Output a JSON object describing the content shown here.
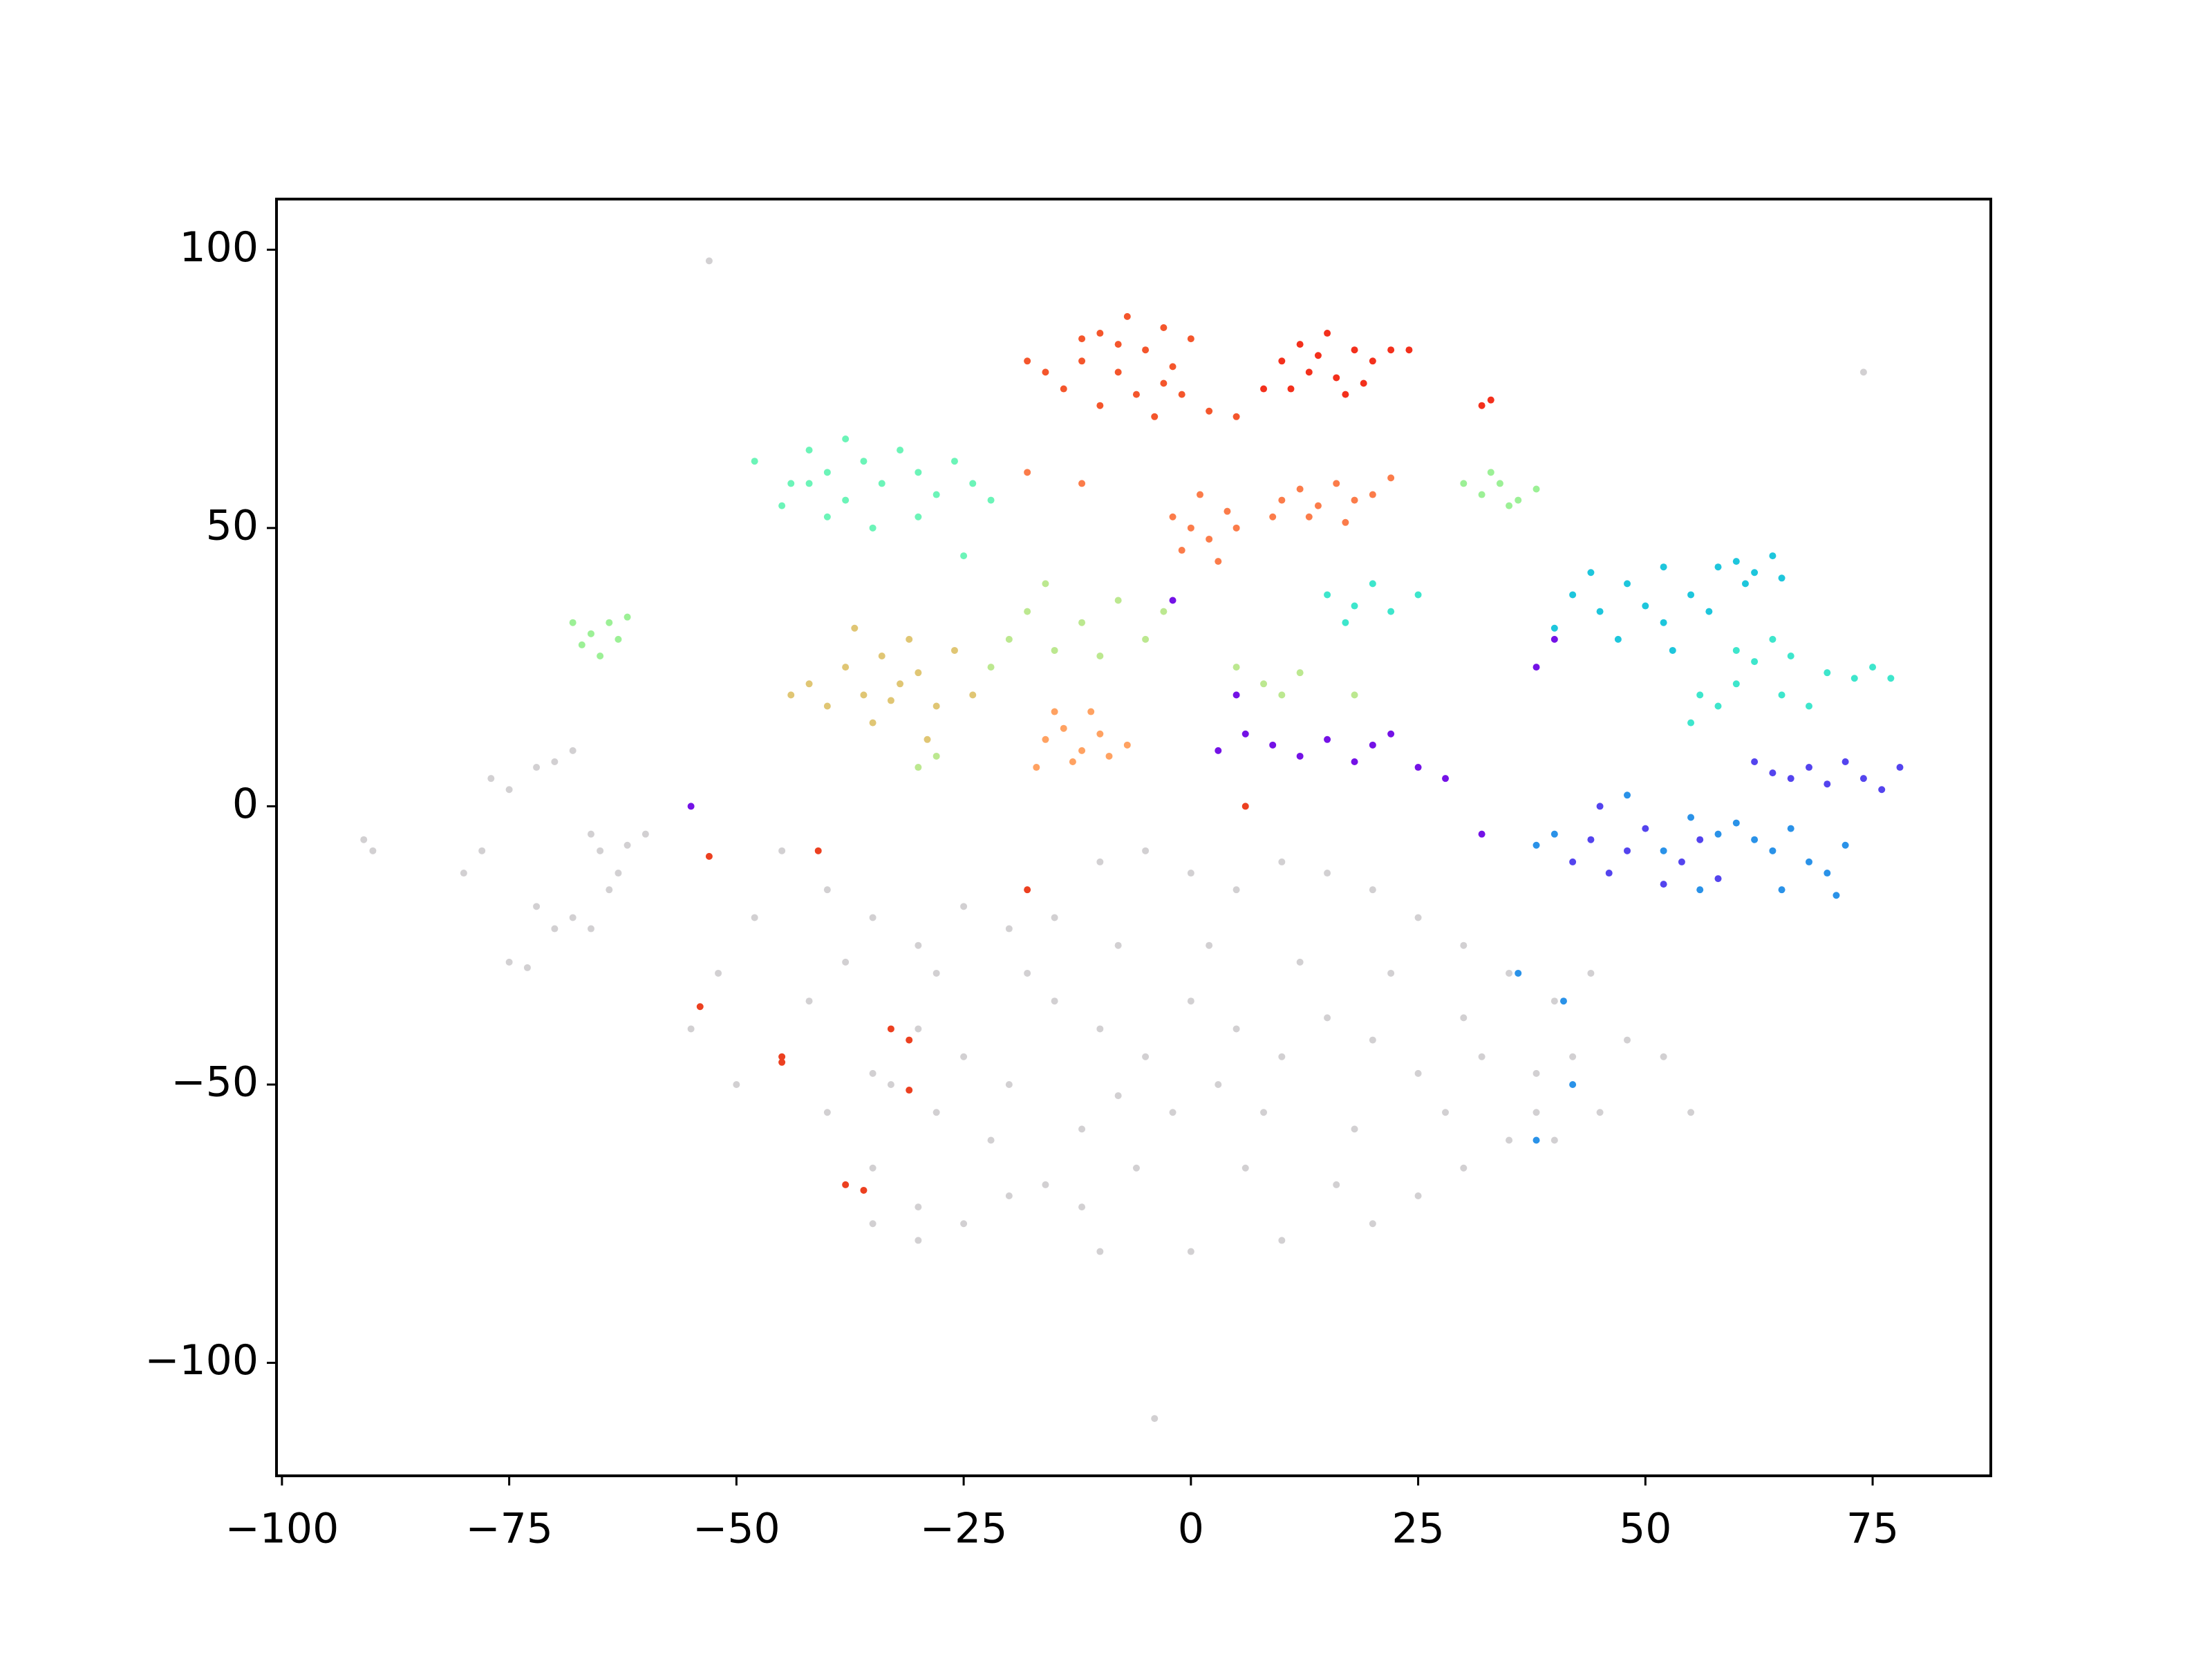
{
  "chart_data": {
    "type": "scatter",
    "xlim": [
      -100.6,
      88.0
    ],
    "ylim": [
      -120.3,
      109.1
    ],
    "xticks": [
      {
        "value": -100,
        "label": "−100"
      },
      {
        "value": -75,
        "label": "−75"
      },
      {
        "value": -50,
        "label": "−50"
      },
      {
        "value": -25,
        "label": "−25"
      },
      0,
      25,
      50,
      75
    ],
    "yticks": [
      {
        "value": -100,
        "label": "−100"
      },
      {
        "value": -50,
        "label": "−50"
      },
      0,
      50,
      100
    ],
    "grid": false,
    "series": [
      {
        "color": "#d2d0d2",
        "x": [
          -53,
          74,
          -4,
          -90,
          -91,
          -65,
          -63,
          -66,
          -62,
          -64,
          -68,
          -70,
          -66,
          -72,
          -75,
          -73,
          -77,
          -75,
          -70,
          -68,
          -72,
          -80,
          -78,
          -60,
          -40,
          -35,
          -30,
          -25,
          -20,
          -15,
          -10,
          -5,
          0,
          5,
          10,
          15,
          20,
          25,
          30,
          35,
          40,
          42,
          38,
          35,
          30,
          25,
          20,
          10,
          0,
          -10,
          -20,
          -30,
          -35,
          -40,
          -45,
          -42,
          -38,
          -30,
          -25,
          -20,
          -15,
          -10,
          -5,
          0,
          5,
          10,
          15,
          20,
          25,
          30,
          -28,
          -22,
          -12,
          -2,
          8,
          18,
          28,
          -8,
          2,
          12,
          22,
          -18,
          -28,
          -33,
          -6,
          6,
          16,
          -16,
          -35,
          32,
          38,
          45,
          48,
          52,
          55,
          -48,
          -52,
          -55,
          -45,
          -50,
          -35,
          -30,
          -25,
          -12,
          40,
          44,
          -8,
          3
        ],
        "values": [
          98,
          78,
          -110,
          -8,
          -6,
          -8,
          -12,
          -5,
          -7,
          -15,
          -20,
          -22,
          -22,
          -18,
          -28,
          -29,
          5,
          3,
          8,
          10,
          7,
          -12,
          -8,
          -5,
          -15,
          -20,
          -25,
          -18,
          -22,
          -20,
          -10,
          -8,
          -12,
          -15,
          -10,
          -12,
          -15,
          -20,
          -25,
          -30,
          -35,
          -45,
          -55,
          -60,
          -65,
          -70,
          -75,
          -78,
          -80,
          -80,
          -70,
          -72,
          -65,
          -55,
          -45,
          -35,
          -28,
          -40,
          -45,
          -50,
          -35,
          -40,
          -45,
          -35,
          -40,
          -45,
          -38,
          -42,
          -48,
          -38,
          -55,
          -60,
          -58,
          -55,
          -55,
          -58,
          -55,
          -25,
          -25,
          -28,
          -30,
          -30,
          -30,
          -50,
          -65,
          -65,
          -68,
          -68,
          -48,
          -45,
          -48,
          -55,
          -42,
          -45,
          -55,
          -20,
          -30,
          -40,
          -8,
          -50,
          -75,
          -78,
          -75,
          -72,
          -60,
          -30,
          -52,
          -50
        ]
      },
      {
        "color": "#f4562c",
        "x": [
          -10,
          -7,
          -3,
          -12,
          -8,
          -5,
          -2,
          -14,
          -10,
          -6,
          -1,
          2,
          -16,
          -4,
          0,
          -8,
          -18,
          -12,
          5,
          -3
        ],
        "values": [
          85,
          88,
          86,
          80,
          78,
          82,
          79,
          75,
          72,
          74,
          74,
          71,
          78,
          70,
          84,
          83,
          80,
          84,
          70,
          76
        ]
      },
      {
        "color": "#f3301c",
        "x": [
          12,
          15,
          18,
          20,
          13,
          16,
          10,
          19,
          22,
          14,
          17,
          11,
          24,
          8,
          32,
          33
        ],
        "values": [
          83,
          85,
          82,
          80,
          78,
          77,
          80,
          76,
          82,
          81,
          74,
          75,
          82,
          75,
          72,
          73
        ]
      },
      {
        "color": "#6cf4b8",
        "x": [
          -48,
          -44,
          -42,
          -40,
          -38,
          -36,
          -34,
          -32,
          -30,
          -28,
          -26,
          -24,
          -40,
          -35,
          -45,
          -22,
          -30,
          -38,
          -25,
          -42
        ],
        "values": [
          62,
          58,
          64,
          60,
          55,
          62,
          58,
          64,
          60,
          56,
          62,
          58,
          52,
          50,
          54,
          55,
          52,
          66,
          45,
          58
        ]
      },
      {
        "color": "#fb7c4a",
        "x": [
          -2,
          0,
          2,
          4,
          -1,
          3,
          1,
          5,
          10,
          12,
          14,
          16,
          18,
          20,
          13,
          17,
          22,
          9,
          -18,
          -12
        ],
        "values": [
          52,
          50,
          48,
          53,
          46,
          44,
          56,
          50,
          55,
          57,
          54,
          58,
          55,
          56,
          52,
          51,
          59,
          52,
          60,
          58
        ]
      },
      {
        "color": "#9cf096",
        "x": [
          30,
          32,
          34,
          36,
          33,
          35,
          38,
          -66,
          -64,
          -67,
          -63,
          -65,
          -62,
          -68
        ],
        "values": [
          58,
          56,
          58,
          55,
          60,
          54,
          57,
          31,
          33,
          29,
          30,
          27,
          34,
          33
        ]
      },
      {
        "color": "#1ec6dc",
        "x": [
          42,
          45,
          48,
          50,
          52,
          55,
          47,
          44,
          52,
          57,
          53,
          40,
          60,
          62,
          64,
          61,
          58,
          65
        ],
        "values": [
          38,
          35,
          40,
          36,
          33,
          38,
          30,
          42,
          43,
          35,
          28,
          32,
          44,
          42,
          45,
          40,
          43,
          41
        ]
      },
      {
        "color": "#3ee6cc",
        "x": [
          15,
          18,
          20,
          22,
          25,
          17,
          60,
          62,
          64,
          66,
          56,
          58,
          60,
          65,
          70,
          73,
          75,
          77,
          68,
          55
        ],
        "values": [
          38,
          36,
          40,
          35,
          38,
          33,
          28,
          26,
          30,
          27,
          20,
          18,
          22,
          20,
          24,
          23,
          25,
          23,
          18,
          15
        ]
      },
      {
        "color": "#e0c674",
        "x": [
          -42,
          -40,
          -38,
          -36,
          -34,
          -32,
          -30,
          -28,
          -35,
          -31,
          -26,
          -44,
          -37,
          -29,
          -33,
          -24
        ],
        "values": [
          22,
          18,
          25,
          20,
          27,
          22,
          24,
          18,
          15,
          30,
          28,
          20,
          32,
          12,
          19,
          20
        ]
      },
      {
        "color": "#bce890",
        "x": [
          -20,
          -18,
          -15,
          -12,
          -10,
          -8,
          -5,
          -16,
          -22,
          -3,
          5,
          8,
          10,
          12,
          18,
          -30,
          -28
        ],
        "values": [
          30,
          35,
          28,
          33,
          27,
          37,
          30,
          40,
          25,
          35,
          25,
          22,
          20,
          24,
          20,
          7,
          9
        ]
      },
      {
        "color": "#ffa262",
        "x": [
          -16,
          -14,
          -12,
          -10,
          -13,
          -9,
          -15,
          -11,
          -7,
          -17
        ],
        "values": [
          12,
          14,
          10,
          13,
          8,
          9,
          17,
          17,
          11,
          7
        ]
      },
      {
        "color": "#7412e6",
        "x": [
          3,
          6,
          9,
          12,
          15,
          18,
          20,
          22,
          25,
          28,
          5,
          -2,
          32,
          -55,
          38,
          40
        ],
        "values": [
          10,
          13,
          11,
          9,
          12,
          8,
          11,
          13,
          7,
          5,
          20,
          37,
          -5,
          0,
          25,
          30
        ]
      },
      {
        "color": "#5444ee",
        "x": [
          42,
          44,
          46,
          48,
          50,
          52,
          54,
          56,
          58,
          45,
          66,
          68,
          70,
          72,
          74,
          76,
          78,
          62,
          64
        ],
        "values": [
          -10,
          -6,
          -12,
          -8,
          -4,
          -14,
          -10,
          -6,
          -13,
          0,
          5,
          7,
          4,
          8,
          5,
          3,
          7,
          8,
          6
        ]
      },
      {
        "color": "#2a92e8",
        "x": [
          38,
          40,
          55,
          58,
          60,
          62,
          64,
          66,
          68,
          70,
          72,
          56,
          65,
          71,
          48,
          52,
          36,
          42,
          38,
          41
        ],
        "values": [
          -7,
          -5,
          -2,
          -5,
          -3,
          -6,
          -8,
          -4,
          -10,
          -12,
          -7,
          -15,
          -15,
          -16,
          2,
          -8,
          -30,
          -50,
          -60,
          -35
        ]
      },
      {
        "color": "#ec4020",
        "x": [
          -33,
          -31,
          -31,
          -45,
          -45,
          -54,
          -38,
          -36,
          -41,
          -18,
          6,
          -53
        ],
        "values": [
          -40,
          -42,
          -51,
          -45,
          -46,
          -36,
          -68,
          -69,
          -8,
          -15,
          0,
          -9
        ]
      }
    ]
  }
}
